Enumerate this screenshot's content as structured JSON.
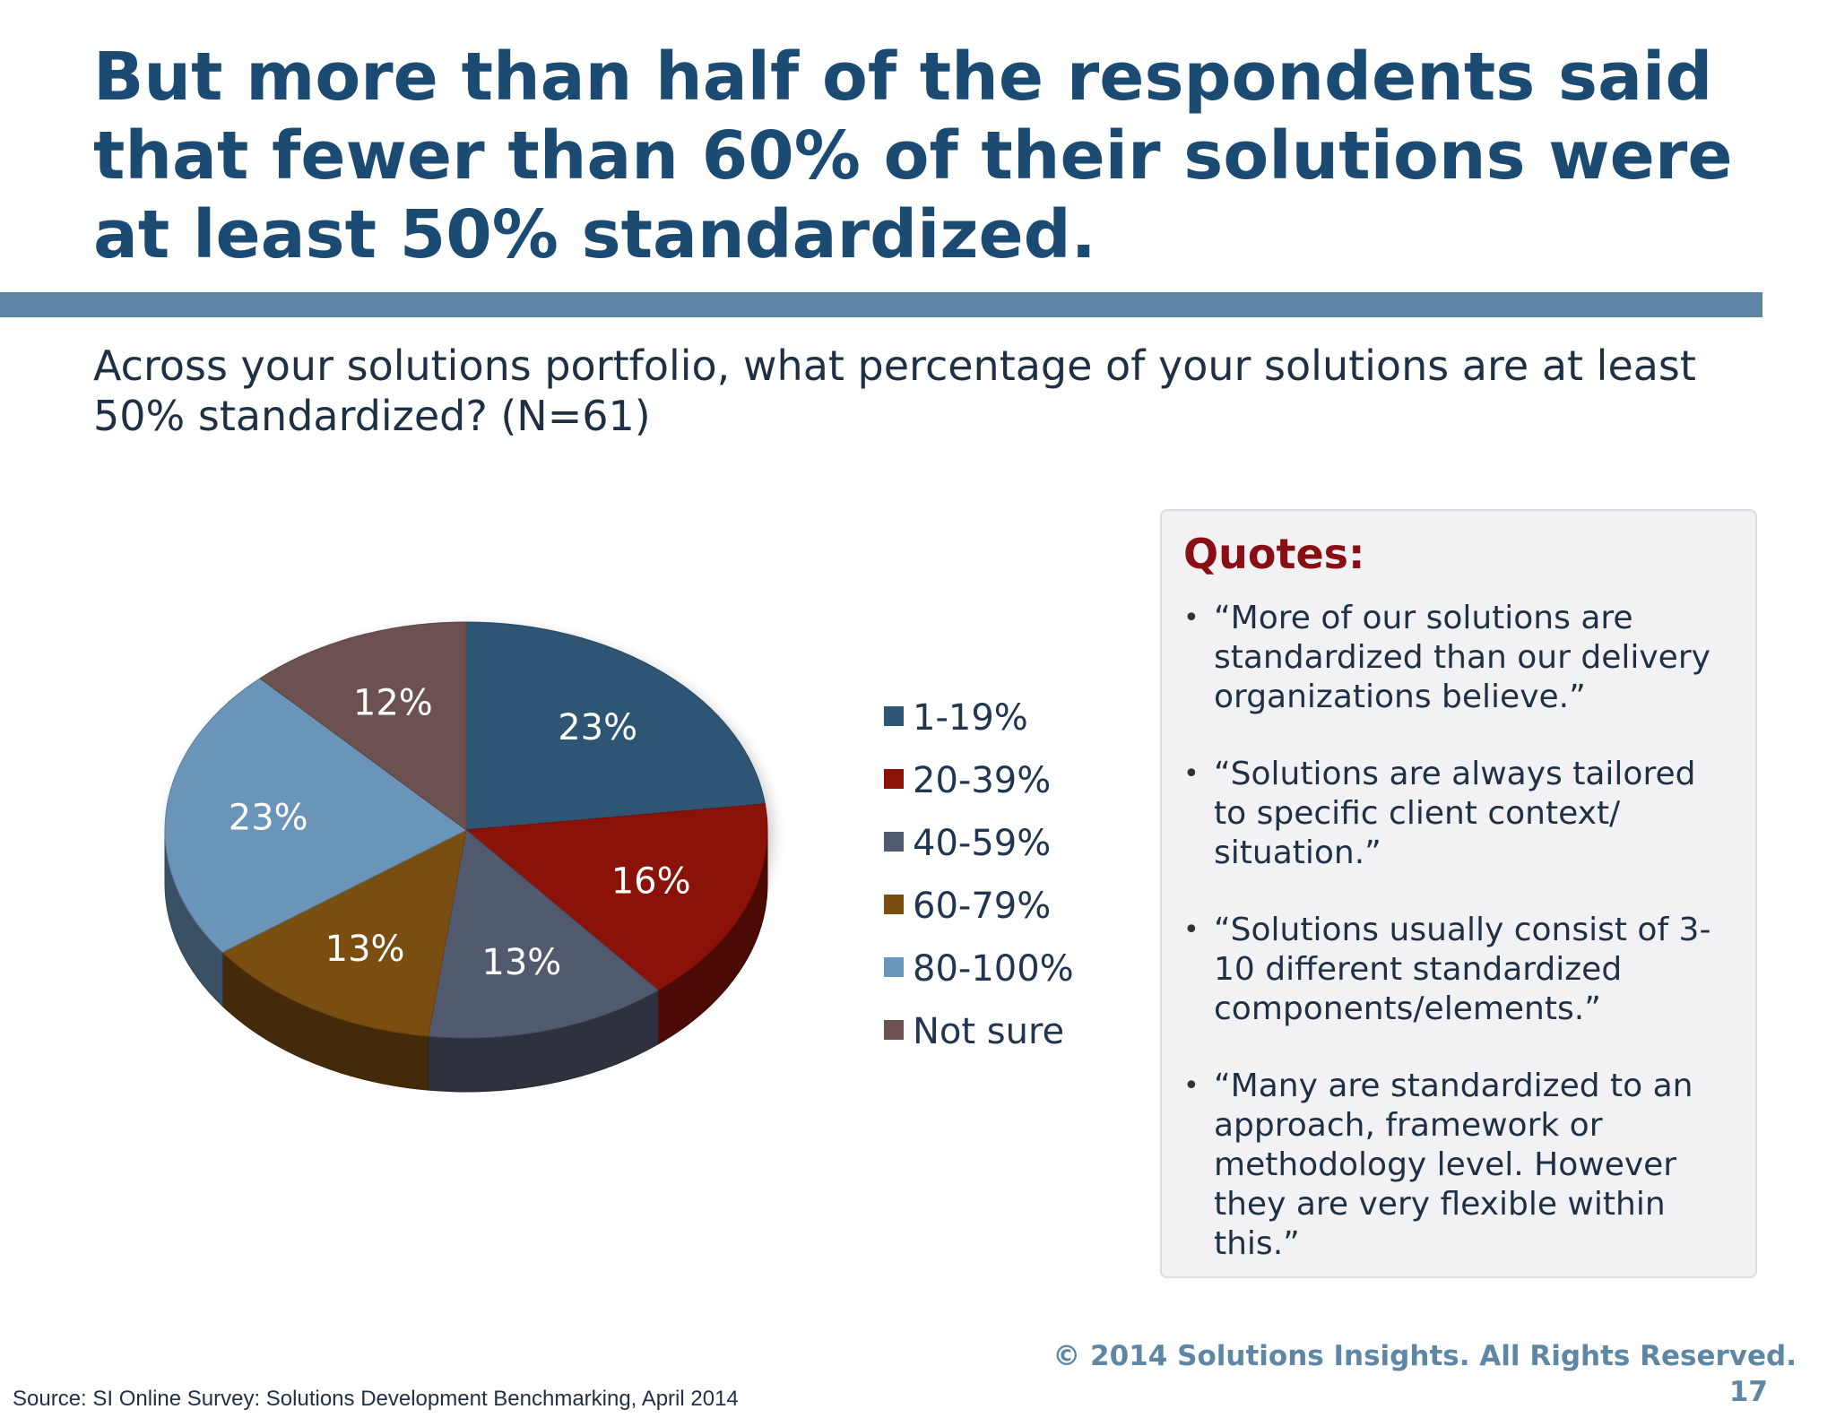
{
  "slide": {
    "title": "But more than half of the respondents said that fewer than 60% of their solutions were at least 50% standardized.",
    "question": "Across your solutions portfolio, what percentage of your solutions are at least 50% standardized?  (N=61)",
    "copyright": "© 2014 Solutions Insights. All Rights Reserved.",
    "page_number": "17",
    "source": "Source: SI Online Survey: Solutions Development Benchmarking, April 2014"
  },
  "chart_data": {
    "type": "pie",
    "title": "",
    "categories": [
      "1-19%",
      "20-39%",
      "40-59%",
      "60-79%",
      "80-100%",
      "Not sure"
    ],
    "values": [
      23,
      16,
      13,
      13,
      23,
      12
    ],
    "data_labels": [
      "23%",
      "16%",
      "13%",
      "13%",
      "23%",
      "12%"
    ],
    "colors": [
      "#2e5573",
      "#8a1208",
      "#525a70",
      "#7a4e10",
      "#6a94b8",
      "#6b5250"
    ],
    "legend_position": "right",
    "style": "3d"
  },
  "quotes": {
    "title": "Quotes:",
    "items": [
      "“More of our solutions are standardized than our delivery organizations believe.”",
      "“Solutions are always tailored to specific client context/ situation.”",
      "“Solutions usually consist of 3-10 different standardized components/elements.”",
      "“Many are standardized to an approach, framework or methodology level. However they are very flexible within this.”"
    ]
  }
}
